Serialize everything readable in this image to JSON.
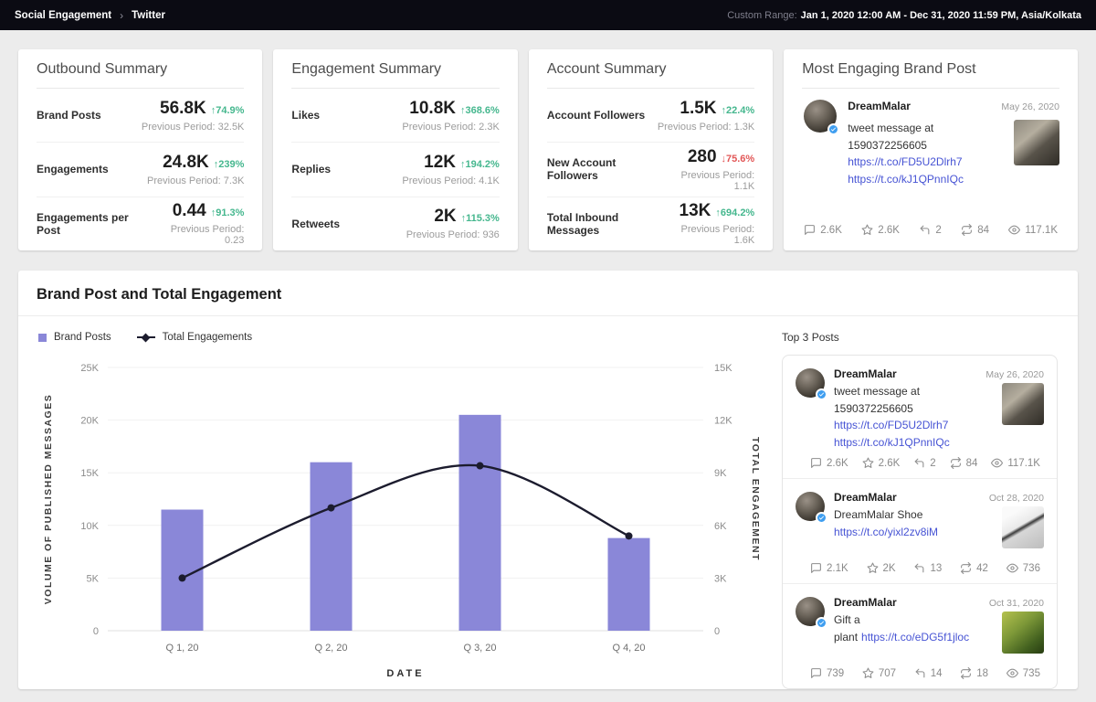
{
  "topbar": {
    "breadcrumb": [
      "Social Engagement",
      "Twitter"
    ],
    "range_label": "Custom Range:",
    "range_value": "Jan 1, 2020 12:00 AM - Dec 31, 2020 11:59 PM, Asia/Kolkata"
  },
  "summary_cards": [
    {
      "title": "Outbound Summary",
      "metrics": [
        {
          "label": "Brand Posts",
          "value": "56.8K",
          "delta": "74.9%",
          "direction": "up",
          "previous": "Previous Period: 32.5K"
        },
        {
          "label": "Engagements",
          "value": "24.8K",
          "delta": "239%",
          "direction": "up",
          "previous": "Previous Period: 7.3K"
        },
        {
          "label": "Engagements per Post",
          "value": "0.44",
          "delta": "91.3%",
          "direction": "up",
          "previous": "Previous Period: 0.23"
        }
      ]
    },
    {
      "title": "Engagement Summary",
      "metrics": [
        {
          "label": "Likes",
          "value": "10.8K",
          "delta": "368.6%",
          "direction": "up",
          "previous": "Previous Period: 2.3K"
        },
        {
          "label": "Replies",
          "value": "12K",
          "delta": "194.2%",
          "direction": "up",
          "previous": "Previous Period: 4.1K"
        },
        {
          "label": "Retweets",
          "value": "2K",
          "delta": "115.3%",
          "direction": "up",
          "previous": "Previous Period: 936"
        }
      ]
    },
    {
      "title": "Account Summary",
      "metrics": [
        {
          "label": "Account Followers",
          "value": "1.5K",
          "delta": "22.4%",
          "direction": "up",
          "previous": "Previous Period: 1.3K"
        },
        {
          "label": "New Account Followers",
          "value": "280",
          "delta": "75.6%",
          "direction": "down",
          "previous": "Previous Period: 1.1K"
        },
        {
          "label": "Total Inbound Messages",
          "value": "13K",
          "delta": "694.2%",
          "direction": "up",
          "previous": "Previous Period: 1.6K"
        }
      ]
    }
  ],
  "most_engaging": {
    "title": "Most Engaging Brand Post"
  },
  "chart_section": {
    "title": "Brand Post and Total Engagement",
    "legend": [
      {
        "label": "Brand Posts",
        "marker": "bar"
      },
      {
        "label": "Total Engagements",
        "marker": "line"
      }
    ],
    "top_posts_title": "Top 3 Posts"
  },
  "chart_data": {
    "type": "bar",
    "categories": [
      "Q 1, 20",
      "Q 2, 20",
      "Q 3, 20",
      "Q 4, 20"
    ],
    "series": [
      {
        "name": "Brand Posts",
        "type": "bar",
        "axis": "left",
        "values": [
          11500,
          16000,
          20500,
          8800
        ]
      },
      {
        "name": "Total Engagements",
        "type": "line",
        "axis": "right",
        "values": [
          3000,
          7000,
          9400,
          5400
        ]
      }
    ],
    "title": "Brand Post and Total Engagement",
    "xlabel": "DATE",
    "left_axis": {
      "label": "VOLUME OF PUBLISHED MESSAGES",
      "max": 25000,
      "ticks": [
        "25K",
        "20K",
        "15K",
        "10K",
        "5K",
        "0"
      ]
    },
    "right_axis": {
      "label": "TOTAL ENGAGEMENT",
      "max": 15000,
      "ticks": [
        "15K",
        "12K",
        "9K",
        "6K",
        "3K",
        "0"
      ]
    },
    "grid": true,
    "legend_position": "top-left",
    "colors": {
      "bar": "#8a87d8",
      "line": "#1c1c2e"
    }
  },
  "posts": [
    {
      "author": "DreamMalar",
      "date": "May 26, 2020",
      "text": "tweet message at 1590372256605",
      "inline_link": "",
      "links": [
        "https://t.co/FD5U2Dlrh7",
        "https://t.co/kJ1QPnnIQc"
      ],
      "thumb": "dog",
      "stats": {
        "comments": "2.6K",
        "likes": "2.6K",
        "replies": "2",
        "retweets": "84",
        "views": "117.1K"
      }
    },
    {
      "author": "DreamMalar",
      "date": "Oct 28, 2020",
      "text": "DreamMalar Shoe",
      "inline_link": "",
      "links": [
        "https://t.co/yixl2zv8iM"
      ],
      "thumb": "shoe",
      "stats": {
        "comments": "2.1K",
        "likes": "2K",
        "replies": "13",
        "retweets": "42",
        "views": "736"
      }
    },
    {
      "author": "DreamMalar",
      "date": "Oct 31, 2020",
      "text": "Gift a plant",
      "inline_link": "https://t.co/eDG5f1jloc",
      "links": [],
      "thumb": "plant",
      "stats": {
        "comments": "739",
        "likes": "707",
        "replies": "14",
        "retweets": "18",
        "views": "735"
      }
    }
  ],
  "stat_icons": [
    {
      "key": "comments",
      "icon": "comment-icon"
    },
    {
      "key": "likes",
      "icon": "star-icon"
    },
    {
      "key": "replies",
      "icon": "reply-icon"
    },
    {
      "key": "retweets",
      "icon": "retweet-icon"
    },
    {
      "key": "views",
      "icon": "views-icon"
    }
  ],
  "theme": {
    "accent_purple": "#8a87d8",
    "line_color": "#1c1c2e",
    "positive": "#45b78e",
    "negative": "#e25757",
    "link": "#4653d4",
    "topbar_bg": "#0b0b13"
  }
}
